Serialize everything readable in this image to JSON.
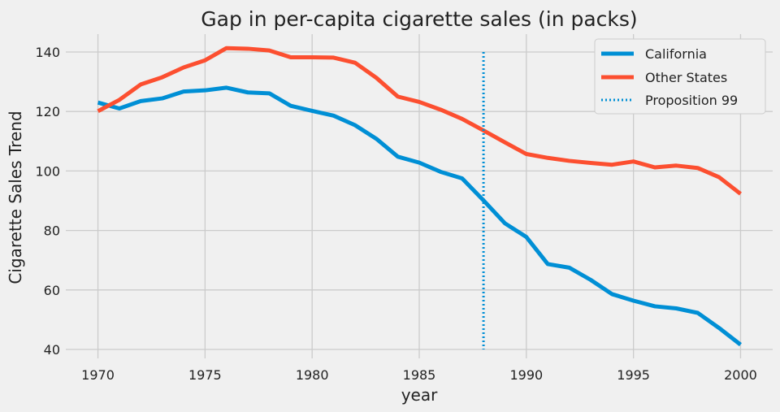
{
  "chart_data": {
    "type": "line",
    "title": "Gap in per-capita cigarette sales (in packs)",
    "xlabel": "year",
    "ylabel": "Cigarette Sales Trend",
    "xlim": [
      1968.5,
      2001.5
    ],
    "ylim": [
      37,
      146
    ],
    "x_ticks": [
      1970,
      1975,
      1980,
      1985,
      1990,
      1995,
      2000
    ],
    "y_ticks": [
      40,
      60,
      80,
      100,
      120,
      140
    ],
    "grid": true,
    "legend_position": "top-right",
    "x": [
      1970,
      1971,
      1972,
      1973,
      1974,
      1975,
      1976,
      1977,
      1978,
      1979,
      1980,
      1981,
      1982,
      1983,
      1984,
      1985,
      1986,
      1987,
      1988,
      1989,
      1990,
      1991,
      1992,
      1993,
      1994,
      1995,
      1996,
      1997,
      1998,
      1999,
      2000
    ],
    "series": [
      {
        "name": "California",
        "color": "#008fd5",
        "values": [
          123.0,
          121.0,
          123.5,
          124.4,
          126.7,
          127.1,
          128.0,
          126.4,
          126.1,
          121.9,
          120.2,
          118.6,
          115.4,
          110.8,
          104.8,
          102.8,
          99.7,
          97.5,
          90.1,
          82.4,
          77.8,
          68.7,
          67.5,
          63.4,
          58.6,
          56.4,
          54.5,
          53.8,
          52.3,
          47.2,
          41.6
        ]
      },
      {
        "name": "Other States",
        "color": "#fc4f30",
        "values": [
          120.1,
          123.9,
          129.1,
          131.5,
          134.8,
          137.2,
          141.3,
          141.1,
          140.5,
          138.2,
          138.2,
          138.1,
          136.4,
          131.3,
          125.0,
          123.2,
          120.6,
          117.5,
          113.6,
          109.6,
          105.7,
          104.4,
          103.4,
          102.7,
          102.1,
          103.2,
          101.2,
          101.8,
          101.0,
          97.9,
          92.3
        ]
      }
    ],
    "vline": {
      "name": "Proposition 99",
      "x": 1988,
      "y_range": [
        40,
        140
      ],
      "color": "#008fd5",
      "style": "dotted"
    }
  },
  "colors": {
    "background": "#f0f0f0",
    "grid": "#cbcbcb",
    "text": "#222222"
  }
}
